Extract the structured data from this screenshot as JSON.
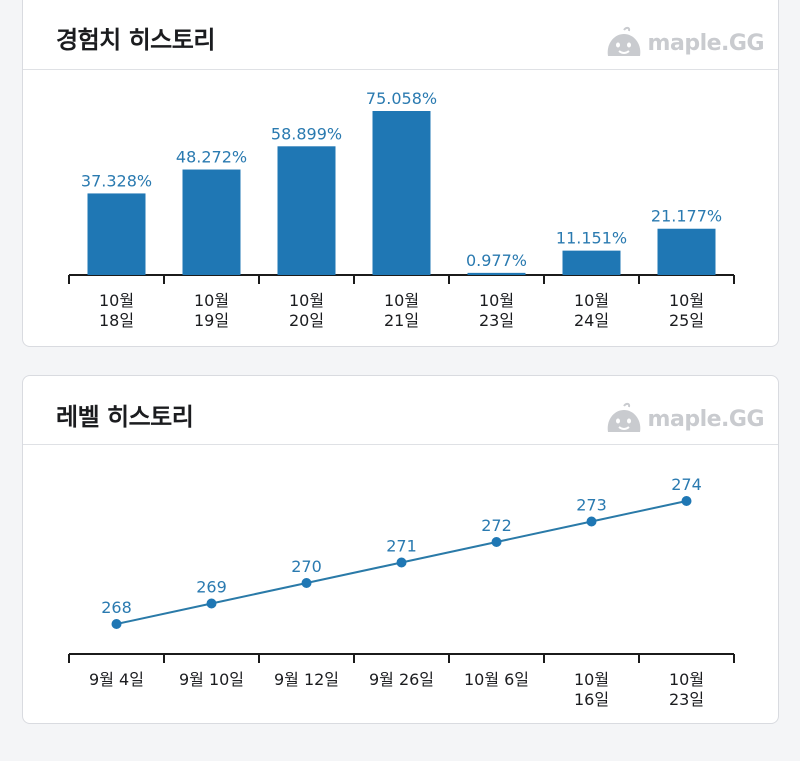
{
  "exp_card": {
    "title": "경험치 히스토리",
    "brand": "maple.GG"
  },
  "level_card": {
    "title": "레벨 히스토리",
    "brand": "maple.GG"
  },
  "colors": {
    "bar": "#1f77b4",
    "label": "#2a7ab0",
    "axis": "#1b1b1b",
    "line": "#2a7aa8",
    "brand": "#c9cbcf"
  },
  "chart_data": [
    {
      "type": "bar",
      "categories": [
        [
          "10월",
          "18일"
        ],
        [
          "10월",
          "19일"
        ],
        [
          "10월",
          "20일"
        ],
        [
          "10월",
          "21일"
        ],
        [
          "10월",
          "23일"
        ],
        [
          "10월",
          "24일"
        ],
        [
          "10월",
          "25일"
        ]
      ],
      "values": [
        37.328,
        48.272,
        58.899,
        75.058,
        0.977,
        11.151,
        21.177
      ],
      "value_labels": [
        "37.328%",
        "48.272%",
        "58.899%",
        "75.058%",
        "0.977%",
        "11.151%",
        "21.177%"
      ],
      "ylim": [
        0,
        75.058
      ]
    },
    {
      "type": "line",
      "categories": [
        [
          "9월 4일"
        ],
        [
          "9월 10일"
        ],
        [
          "9월 12일"
        ],
        [
          "9월 26일"
        ],
        [
          "10월 6일"
        ],
        [
          "10월",
          "16일"
        ],
        [
          "10월",
          "23일"
        ]
      ],
      "values": [
        268,
        269,
        270,
        271,
        272,
        273,
        274
      ],
      "value_labels": [
        "268",
        "269",
        "270",
        "271",
        "272",
        "273",
        "274"
      ],
      "ylim": [
        268,
        274
      ]
    }
  ]
}
